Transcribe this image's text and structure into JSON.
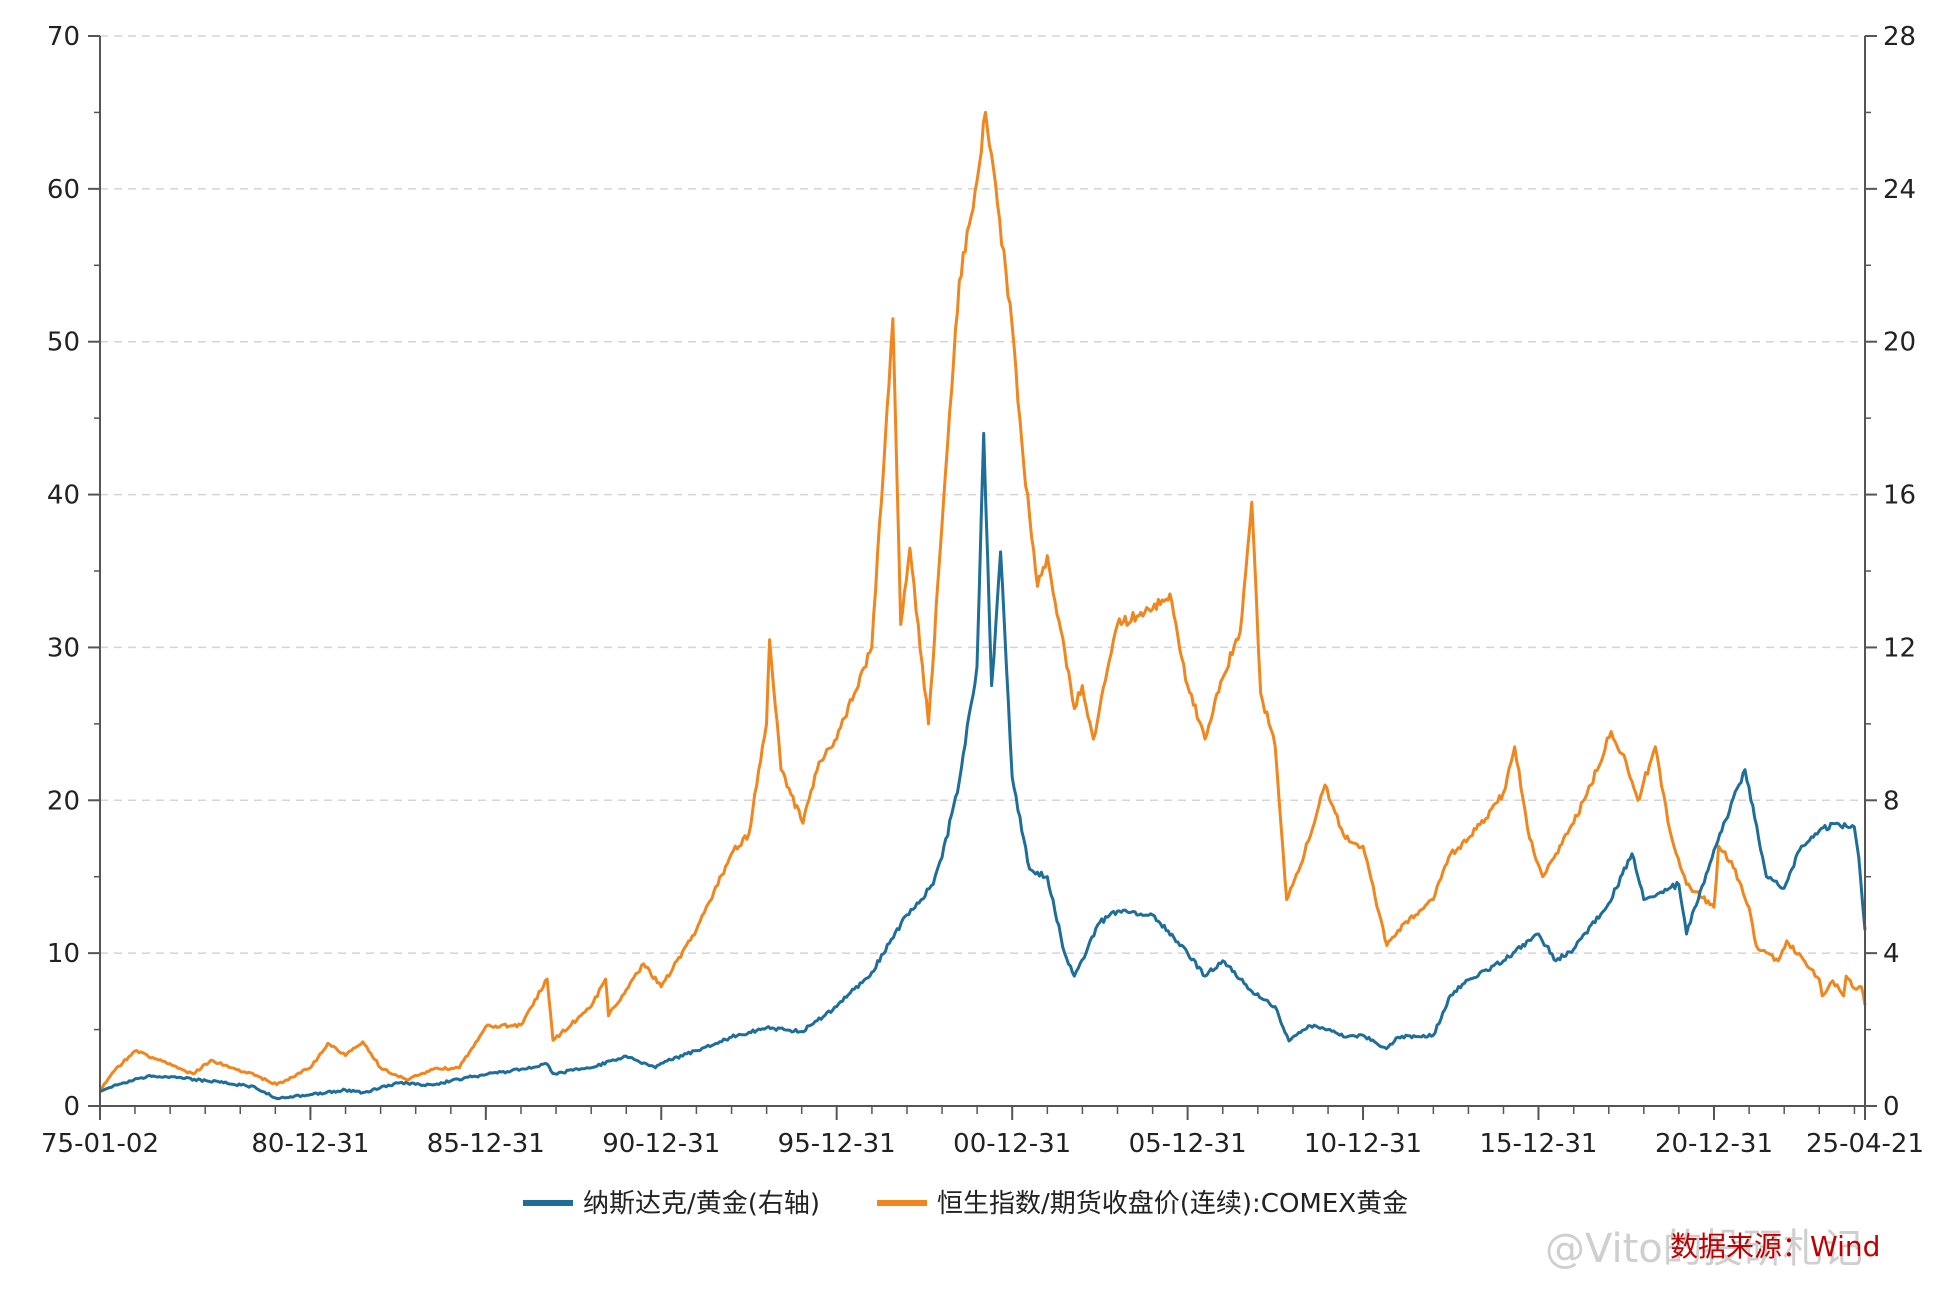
{
  "chart_data": {
    "type": "line",
    "title": "",
    "xlabel": "",
    "x_tick_labels": [
      "75-01-02",
      "80-12-31",
      "85-12-31",
      "90-12-31",
      "95-12-31",
      "00-12-31",
      "05-12-31",
      "10-12-31",
      "15-12-31",
      "20-12-31",
      "25-04-21"
    ],
    "y_left": {
      "range": [
        0,
        70
      ],
      "ticks": [
        "0",
        "10",
        "20",
        "30",
        "40",
        "50",
        "60",
        "70"
      ]
    },
    "y_right": {
      "range": [
        0,
        28
      ],
      "ticks": [
        "0",
        "4",
        "8",
        "12",
        "16",
        "20",
        "24",
        "28"
      ]
    },
    "grid": "horizontal dashed",
    "legend_position": "bottom",
    "series": [
      {
        "name": "纳斯达克/黄金(右轴)",
        "axis": "right",
        "color": "#1f6e99",
        "points": [
          [
            "1975-01-02",
            0.38
          ],
          [
            "1975-07-01",
            0.55
          ],
          [
            "1976-06-01",
            0.8
          ],
          [
            "1977-06-01",
            0.72
          ],
          [
            "1978-06-01",
            0.62
          ],
          [
            "1979-06-01",
            0.5
          ],
          [
            "1980-01-15",
            0.2
          ],
          [
            "1980-12-31",
            0.3
          ],
          [
            "1981-12-31",
            0.42
          ],
          [
            "1982-06-30",
            0.35
          ],
          [
            "1983-06-30",
            0.6
          ],
          [
            "1984-06-30",
            0.55
          ],
          [
            "1985-06-30",
            0.75
          ],
          [
            "1985-12-31",
            0.82
          ],
          [
            "1986-12-31",
            0.96
          ],
          [
            "1987-09-30",
            1.1
          ],
          [
            "1987-11-30",
            0.85
          ],
          [
            "1988-12-31",
            1.0
          ],
          [
            "1989-12-31",
            1.3
          ],
          [
            "1990-10-31",
            1.0
          ],
          [
            "1990-12-31",
            1.12
          ],
          [
            "1991-12-31",
            1.45
          ],
          [
            "1992-12-31",
            1.8
          ],
          [
            "1993-12-31",
            2.05
          ],
          [
            "1994-12-31",
            1.95
          ],
          [
            "1995-12-31",
            2.6
          ],
          [
            "1996-12-31",
            3.5
          ],
          [
            "1997-12-31",
            5.0
          ],
          [
            "1998-10-01",
            5.8
          ],
          [
            "1998-12-31",
            6.5
          ],
          [
            "1999-06-30",
            8.5
          ],
          [
            "1999-12-31",
            11.5
          ],
          [
            "2000-03-10",
            17.6
          ],
          [
            "2000-05-31",
            11.0
          ],
          [
            "2000-09-01",
            14.5
          ],
          [
            "2000-12-31",
            8.6
          ],
          [
            "2001-06-30",
            6.2
          ],
          [
            "2001-12-31",
            6.0
          ],
          [
            "2002-06-30",
            4.0
          ],
          [
            "2002-10-09",
            3.4
          ],
          [
            "2003-06-30",
            4.8
          ],
          [
            "2003-12-31",
            5.1
          ],
          [
            "2004-12-31",
            5.0
          ],
          [
            "2005-12-31",
            4.0
          ],
          [
            "2006-06-30",
            3.4
          ],
          [
            "2006-12-31",
            3.8
          ],
          [
            "2007-10-31",
            3.0
          ],
          [
            "2008-06-30",
            2.6
          ],
          [
            "2008-11-20",
            1.7
          ],
          [
            "2009-06-30",
            2.1
          ],
          [
            "2009-12-31",
            2.0
          ],
          [
            "2010-06-30",
            1.8
          ],
          [
            "2010-12-31",
            1.85
          ],
          [
            "2011-08-31",
            1.5
          ],
          [
            "2011-12-31",
            1.8
          ],
          [
            "2012-12-31",
            1.85
          ],
          [
            "2013-06-30",
            2.9
          ],
          [
            "2013-12-31",
            3.3
          ],
          [
            "2014-12-31",
            3.8
          ],
          [
            "2015-12-31",
            4.5
          ],
          [
            "2016-06-30",
            3.8
          ],
          [
            "2016-12-31",
            4.1
          ],
          [
            "2017-12-31",
            5.3
          ],
          [
            "2018-08-31",
            6.6
          ],
          [
            "2018-12-31",
            5.4
          ],
          [
            "2019-06-30",
            5.6
          ],
          [
            "2019-12-31",
            5.8
          ],
          [
            "2020-03-20",
            4.5
          ],
          [
            "2020-12-31",
            6.7
          ],
          [
            "2021-11-19",
            8.8
          ],
          [
            "2022-06-30",
            6.0
          ],
          [
            "2022-12-31",
            5.7
          ],
          [
            "2023-06-30",
            6.8
          ],
          [
            "2023-12-31",
            7.2
          ],
          [
            "2024-06-30",
            7.4
          ],
          [
            "2024-12-31",
            7.3
          ],
          [
            "2025-02-15",
            6.5
          ],
          [
            "2025-04-21",
            4.6
          ]
        ]
      },
      {
        "name": "恒生指数/期货收盘价(连续):COMEX黄金",
        "axis": "left",
        "color": "#f0861e",
        "points": [
          [
            "1975-01-02",
            1.0
          ],
          [
            "1975-06-01",
            2.3
          ],
          [
            "1976-01-01",
            3.6
          ],
          [
            "1976-09-01",
            3.0
          ],
          [
            "1977-09-01",
            2.1
          ],
          [
            "1978-03-01",
            3.0
          ],
          [
            "1979-06-01",
            2.0
          ],
          [
            "1980-01-15",
            1.4
          ],
          [
            "1980-12-31",
            2.5
          ],
          [
            "1981-06-30",
            4.1
          ],
          [
            "1981-12-31",
            3.3
          ],
          [
            "1982-06-30",
            4.2
          ],
          [
            "1982-12-31",
            2.5
          ],
          [
            "1983-09-30",
            1.7
          ],
          [
            "1984-06-30",
            2.4
          ],
          [
            "1985-03-31",
            2.5
          ],
          [
            "1985-12-31",
            5.2
          ],
          [
            "1986-12-31",
            5.3
          ],
          [
            "1987-09-30",
            8.3
          ],
          [
            "1987-11-30",
            4.3
          ],
          [
            "1988-12-31",
            6.5
          ],
          [
            "1989-05-31",
            8.3
          ],
          [
            "1989-06-30",
            5.9
          ],
          [
            "1989-12-31",
            7.6
          ],
          [
            "1990-06-30",
            9.3
          ],
          [
            "1990-12-31",
            7.8
          ],
          [
            "1991-12-31",
            11.5
          ],
          [
            "1992-12-31",
            16.5
          ],
          [
            "1993-06-30",
            17.8
          ],
          [
            "1993-12-31",
            25.0
          ],
          [
            "1994-02-01",
            30.5
          ],
          [
            "1994-05-31",
            22.0
          ],
          [
            "1995-01-15",
            18.5
          ],
          [
            "1995-06-30",
            22.5
          ],
          [
            "1995-12-31",
            24.0
          ],
          [
            "1996-12-31",
            30.0
          ],
          [
            "1997-08-07",
            51.5
          ],
          [
            "1997-10-28",
            31.5
          ],
          [
            "1998-01-31",
            36.5
          ],
          [
            "1998-08-13",
            25.0
          ],
          [
            "1998-12-31",
            38.0
          ],
          [
            "1999-06-30",
            54.0
          ],
          [
            "1999-12-31",
            60.5
          ],
          [
            "2000-03-28",
            65.0
          ],
          [
            "2000-07-31",
            59.0
          ],
          [
            "2000-12-31",
            51.0
          ],
          [
            "2001-04-30",
            42.0
          ],
          [
            "2001-09-21",
            34.0
          ],
          [
            "2001-12-31",
            36.0
          ],
          [
            "2002-10-10",
            26.0
          ],
          [
            "2002-12-31",
            27.5
          ],
          [
            "2003-04-25",
            24.0
          ],
          [
            "2003-12-31",
            31.5
          ],
          [
            "2004-12-31",
            32.5
          ],
          [
            "2005-06-30",
            33.5
          ],
          [
            "2005-12-31",
            27.5
          ],
          [
            "2006-06-30",
            24.0
          ],
          [
            "2006-12-31",
            28.0
          ],
          [
            "2007-06-30",
            31.0
          ],
          [
            "2007-10-30",
            39.5
          ],
          [
            "2008-01-31",
            27.0
          ],
          [
            "2008-06-30",
            23.5
          ],
          [
            "2008-10-27",
            13.5
          ],
          [
            "2009-04-30",
            16.5
          ],
          [
            "2009-11-30",
            21.0
          ],
          [
            "2010-06-30",
            17.5
          ],
          [
            "2010-12-31",
            17.0
          ],
          [
            "2011-09-05",
            10.5
          ],
          [
            "2011-12-31",
            11.5
          ],
          [
            "2012-06-30",
            12.5
          ],
          [
            "2012-12-31",
            13.5
          ],
          [
            "2013-06-30",
            16.5
          ],
          [
            "2013-12-31",
            17.5
          ],
          [
            "2014-06-30",
            18.8
          ],
          [
            "2014-12-31",
            20.5
          ],
          [
            "2015-04-28",
            23.5
          ],
          [
            "2015-09-30",
            17.5
          ],
          [
            "2016-02-12",
            15.0
          ],
          [
            "2016-06-30",
            16.5
          ],
          [
            "2016-12-31",
            18.5
          ],
          [
            "2017-06-30",
            21.0
          ],
          [
            "2018-01-26",
            24.5
          ],
          [
            "2018-06-30",
            22.5
          ],
          [
            "2018-10-31",
            20.0
          ],
          [
            "2019-04-30",
            23.5
          ],
          [
            "2019-09-30",
            18.0
          ],
          [
            "2020-03-20",
            14.5
          ],
          [
            "2020-06-30",
            14.0
          ],
          [
            "2020-12-31",
            13.0
          ],
          [
            "2021-02-17",
            17.0
          ],
          [
            "2021-06-30",
            16.0
          ],
          [
            "2021-12-31",
            13.0
          ],
          [
            "2022-03-15",
            10.5
          ],
          [
            "2022-10-31",
            9.5
          ],
          [
            "2023-01-27",
            10.8
          ],
          [
            "2023-12-31",
            8.3
          ],
          [
            "2024-02-01",
            7.2
          ],
          [
            "2024-05-20",
            8.2
          ],
          [
            "2024-09-10",
            7.2
          ],
          [
            "2024-10-07",
            8.5
          ],
          [
            "2024-12-31",
            7.7
          ],
          [
            "2025-03-15",
            7.8
          ],
          [
            "2025-04-21",
            6.6
          ]
        ]
      }
    ]
  },
  "source_text": "数据来源：Wind",
  "watermark_text": "@Vito的投研札记"
}
